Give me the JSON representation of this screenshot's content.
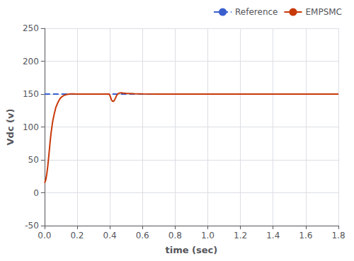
{
  "chart_data": {
    "type": "line",
    "xlabel": "time (sec)",
    "ylabel": "Vdc (v)",
    "xlim": [
      0,
      1.8
    ],
    "ylim": [
      -50,
      250
    ],
    "xticks": [
      {
        "value": 0,
        "label": "0.0"
      },
      0.2,
      0.4,
      0.6,
      0.8,
      {
        "value": 1.0,
        "label": "1.0"
      },
      1.2,
      1.4,
      1.6,
      1.8
    ],
    "yticks": [
      -50,
      0,
      50,
      100,
      150,
      200,
      250
    ],
    "grid": true,
    "legend": "upper right",
    "series": [
      {
        "name": "Reference",
        "color": "#3a5fcd",
        "line_style": "dashed",
        "x": [
          0,
          1.8
        ],
        "values": [
          150,
          150
        ]
      },
      {
        "name": "EMPSMC",
        "color": "#c8390a",
        "line_style": "solid",
        "x": [
          0.0,
          0.003,
          0.006,
          0.01,
          0.015,
          0.02,
          0.025,
          0.03,
          0.035,
          0.04,
          0.05,
          0.06,
          0.07,
          0.08,
          0.09,
          0.1,
          0.11,
          0.12,
          0.13,
          0.14,
          0.15,
          0.16,
          0.17,
          0.18,
          0.19,
          0.2,
          0.22,
          0.25,
          0.28,
          0.3,
          0.35,
          0.38,
          0.395,
          0.4,
          0.405,
          0.41,
          0.415,
          0.42,
          0.425,
          0.43,
          0.435,
          0.44,
          0.45,
          0.46,
          0.47,
          0.48,
          0.5,
          0.55,
          0.6,
          0.7,
          0.8,
          1.0,
          1.2,
          1.4,
          1.6,
          1.8
        ],
        "values": [
          15.0,
          16.0,
          18.0,
          22.0,
          30.0,
          40.0,
          52.0,
          65.0,
          78.0,
          90.0,
          108.0,
          120.0,
          130.0,
          136.0,
          141.0,
          144.5,
          146.5,
          148.0,
          149.0,
          149.5,
          150.0,
          150.2,
          150.3,
          150.2,
          150.1,
          150.0,
          150.0,
          150.0,
          150.0,
          150.0,
          150.0,
          150.0,
          150.0,
          148.5,
          145.0,
          141.5,
          139.5,
          139.0,
          139.5,
          141.5,
          144.0,
          147.0,
          150.5,
          151.5,
          152.0,
          151.5,
          151.0,
          150.5,
          150.2,
          150.0,
          150.0,
          150.0,
          150.0,
          150.0,
          150.0,
          150.0
        ]
      }
    ]
  }
}
